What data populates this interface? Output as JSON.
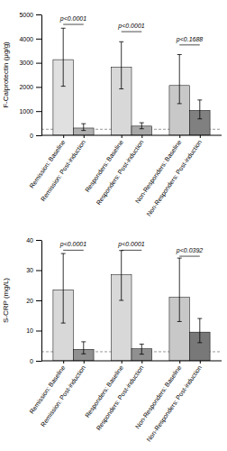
{
  "chart_data": [
    {
      "type": "bar",
      "ylabel": "F-Calprotectin (μg/g)",
      "categories": [
        "Remission: Baseline",
        "Remission: Post-induction",
        "Responders: Baseline",
        "Responders: Post-induction",
        "Non-Responders: Baseline",
        "Non-Responders: Post-induction"
      ],
      "values": [
        3130,
        300,
        2820,
        380,
        2060,
        1030
      ],
      "colors": [
        "#e0e0e0",
        "#b0b0b0",
        "#d8d8d8",
        "#a8a8a8",
        "#c8c8c8",
        "#808080"
      ],
      "yerr_low": [
        1100,
        100,
        900,
        110,
        750,
        350
      ],
      "yerr_high": [
        1300,
        180,
        1050,
        140,
        1280,
        430
      ],
      "ylim": [
        0,
        5000
      ],
      "yticks": [
        0,
        1000,
        2000,
        3000,
        4000,
        5000
      ],
      "reference_line": 250,
      "annotations": [
        {
          "text": "p<0.0001",
          "y": 4700
        },
        {
          "text": "p<0.0001",
          "y": 4400
        },
        {
          "text": "p<0.1688",
          "y": 3850
        }
      ],
      "grid": false
    },
    {
      "type": "bar",
      "ylabel": "S-CRP (mg/L)",
      "categories": [
        "Remission: Baseline",
        "Remission: Post-induction",
        "Responders: Baseline",
        "Responders: Post-induction",
        "Non-Responders: Baseline",
        "Non-Responders: Post-induction"
      ],
      "values": [
        23.5,
        3.8,
        28.5,
        4.0,
        21.0,
        9.5
      ],
      "colors": [
        "#d8d8d8",
        "#909090",
        "#d8d8d8",
        "#909090",
        "#c8c8c8",
        "#787878"
      ],
      "yerr_low": [
        11,
        1.5,
        8.5,
        1.8,
        8,
        3.5
      ],
      "yerr_high": [
        12,
        2.5,
        8,
        1.5,
        13,
        4.5
      ],
      "ylim": [
        0,
        40
      ],
      "yticks": [
        0,
        10,
        20,
        30,
        40
      ],
      "reference_line": 3,
      "annotations": [
        {
          "text": "p<0.0001",
          "y": 37.5
        },
        {
          "text": "p<0.0001",
          "y": 37.5
        },
        {
          "text": "p<0.0392",
          "y": 35.5
        }
      ],
      "grid": false
    }
  ]
}
